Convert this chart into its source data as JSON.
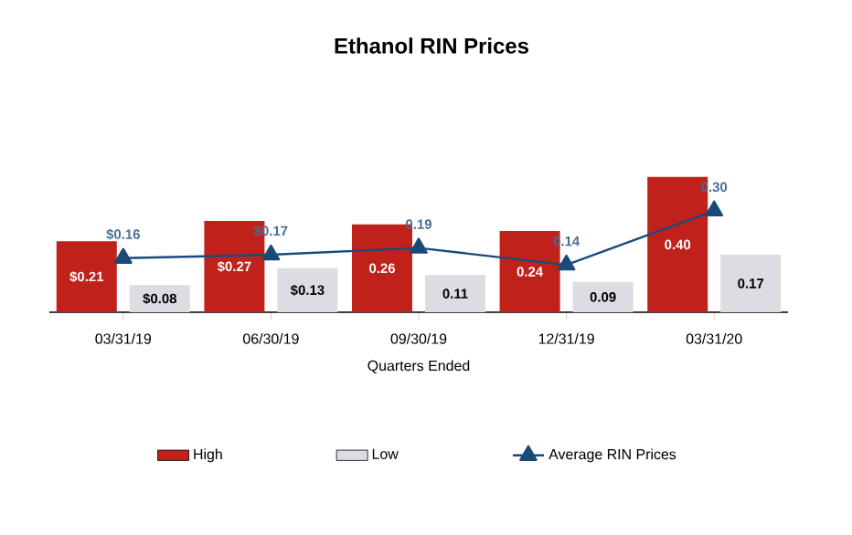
{
  "chart_data": {
    "type": "bar",
    "title": "Ethanol RIN Prices",
    "xlabel": "Quarters Ended",
    "categories": [
      "03/31/19",
      "06/30/19",
      "09/30/19",
      "12/31/19",
      "03/31/20"
    ],
    "legend": "bottom",
    "series": [
      {
        "name": "High",
        "color": "#c0221b",
        "values": [
          0.21,
          0.27,
          0.26,
          0.24,
          0.4
        ],
        "value_labels": [
          "$0.21",
          "$0.27",
          "0.26",
          "0.24",
          "0.40"
        ]
      },
      {
        "name": "Low",
        "color": "#dcdde2",
        "values": [
          0.08,
          0.13,
          0.11,
          0.09,
          0.17
        ],
        "value_labels": [
          "$0.08",
          "$0.13",
          "0.11",
          "0.09",
          "0.17"
        ]
      },
      {
        "name": "Average RIN Prices",
        "type": "line",
        "color": "#1a4a7a",
        "marker": "triangle",
        "values": [
          0.16,
          0.17,
          0.19,
          0.14,
          0.3
        ],
        "value_labels": [
          "$0.16",
          "$0.17",
          "0.19",
          "0.14",
          "0.30"
        ]
      }
    ]
  }
}
